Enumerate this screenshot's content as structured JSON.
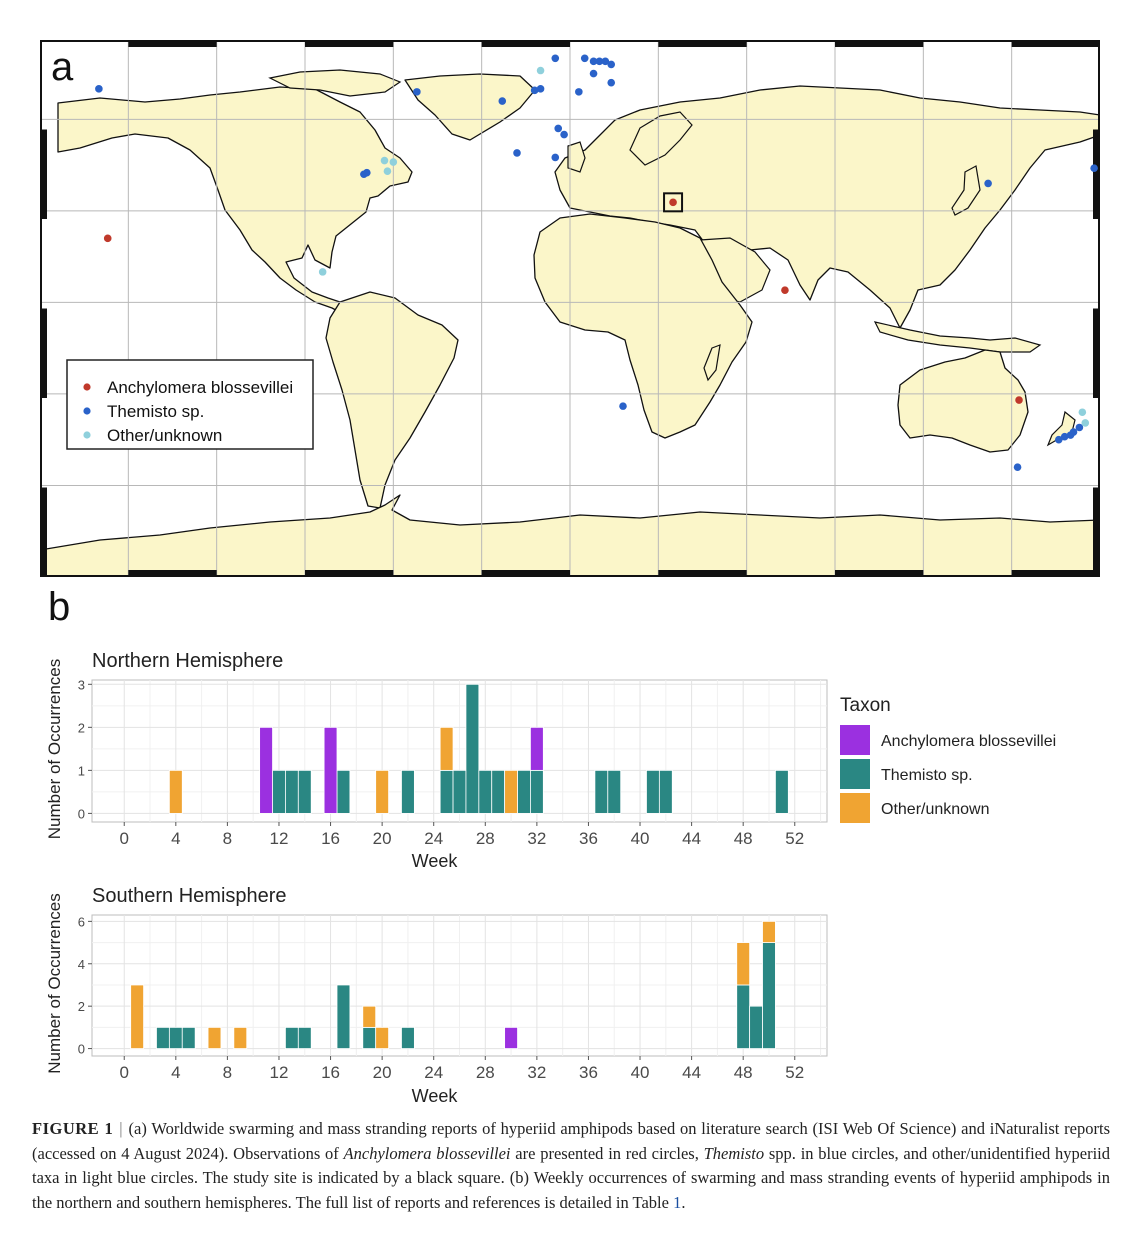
{
  "panel_a": {
    "label": "a",
    "legend": [
      {
        "label": "Anchylomera blossevillei",
        "color": "#c0392b"
      },
      {
        "label": "Themisto sp.",
        "color": "#2a62c9"
      },
      {
        "label": "Other/unknown",
        "color": "#8fd0dc"
      }
    ],
    "colors": {
      "land": "#fbf6c9",
      "ocean": "#ffffff",
      "outline": "#111111",
      "grid": "#c8c8c8"
    },
    "study_site": {
      "lon": 35.0,
      "lat": 32.8
    },
    "observations": [
      {
        "taxon": "Themisto sp.",
        "lon": -160,
        "lat": 70
      },
      {
        "taxon": "Themisto sp.",
        "lon": -52,
        "lat": 69
      },
      {
        "taxon": "Themisto sp.",
        "lon": -70,
        "lat": 42
      },
      {
        "taxon": "Themisto sp.",
        "lon": -69,
        "lat": 42.5
      },
      {
        "taxon": "Other/unknown",
        "lon": -62,
        "lat": 43
      },
      {
        "taxon": "Other/unknown",
        "lon": -60,
        "lat": 46
      },
      {
        "taxon": "Other/unknown",
        "lon": -63,
        "lat": 46.5
      },
      {
        "taxon": "Other/unknown",
        "lon": -84,
        "lat": 10
      },
      {
        "taxon": "Anchylomera blossevillei",
        "lon": -157,
        "lat": 21
      },
      {
        "taxon": "Themisto sp.",
        "lon": -23,
        "lat": 66
      },
      {
        "taxon": "Other/unknown",
        "lon": -10,
        "lat": 76
      },
      {
        "taxon": "Themisto sp.",
        "lon": -5,
        "lat": 80
      },
      {
        "taxon": "Themisto sp.",
        "lon": 5,
        "lat": 80
      },
      {
        "taxon": "Themisto sp.",
        "lon": 8,
        "lat": 79
      },
      {
        "taxon": "Themisto sp.",
        "lon": 10,
        "lat": 79
      },
      {
        "taxon": "Themisto sp.",
        "lon": 12,
        "lat": 79
      },
      {
        "taxon": "Themisto sp.",
        "lon": 14,
        "lat": 78
      },
      {
        "taxon": "Themisto sp.",
        "lon": 8,
        "lat": 75
      },
      {
        "taxon": "Themisto sp.",
        "lon": 14,
        "lat": 72
      },
      {
        "taxon": "Themisto sp.",
        "lon": -10,
        "lat": 70
      },
      {
        "taxon": "Themisto sp.",
        "lon": -12,
        "lat": 69.5
      },
      {
        "taxon": "Themisto sp.",
        "lon": 3,
        "lat": 69
      },
      {
        "taxon": "Themisto sp.",
        "lon": -4,
        "lat": 57
      },
      {
        "taxon": "Themisto sp.",
        "lon": -2,
        "lat": 55
      },
      {
        "taxon": "Themisto sp.",
        "lon": -18,
        "lat": 49
      },
      {
        "taxon": "Themisto sp.",
        "lon": -5,
        "lat": 47.5
      },
      {
        "taxon": "Anchylomera blossevillei",
        "lon": 35.0,
        "lat": 32.8
      },
      {
        "taxon": "Anchylomera blossevillei",
        "lon": 73,
        "lat": 4
      },
      {
        "taxon": "Themisto sp.",
        "lon": 18,
        "lat": -34
      },
      {
        "taxon": "Themisto sp.",
        "lon": 142,
        "lat": 39
      },
      {
        "taxon": "Themisto sp.",
        "lon": 178,
        "lat": 44
      },
      {
        "taxon": "Anchylomera blossevillei",
        "lon": 152.5,
        "lat": -32
      },
      {
        "taxon": "Themisto sp.",
        "lon": 152,
        "lat": -54
      },
      {
        "taxon": "Themisto sp.",
        "lon": 166,
        "lat": -45
      },
      {
        "taxon": "Themisto sp.",
        "lon": 168,
        "lat": -44
      },
      {
        "taxon": "Themisto sp.",
        "lon": 170,
        "lat": -43.5
      },
      {
        "taxon": "Themisto sp.",
        "lon": 171,
        "lat": -42.5
      },
      {
        "taxon": "Themisto sp.",
        "lon": 173,
        "lat": -41
      },
      {
        "taxon": "Other/unknown",
        "lon": 175,
        "lat": -39.5
      },
      {
        "taxon": "Other/unknown",
        "lon": 174,
        "lat": -36
      }
    ]
  },
  "panel_b": {
    "label": "b",
    "legend_title": "Taxon",
    "legend": [
      {
        "label": "Anchylomera blossevillei",
        "color": "#9b30e0"
      },
      {
        "label": "Themisto sp.",
        "color": "#2a8783"
      },
      {
        "label": "Other/unknown",
        "color": "#f0a432"
      }
    ]
  },
  "chart_data": [
    {
      "type": "bar",
      "stacked": true,
      "title": "Northern Hemisphere",
      "xlabel": "Week",
      "ylabel": "Number of Occurrences",
      "xlim": [
        -2.5,
        54.5
      ],
      "ylim": [
        -0.2,
        3.1
      ],
      "x_ticks": [
        0,
        4,
        8,
        12,
        16,
        20,
        24,
        28,
        32,
        36,
        40,
        44,
        48,
        52
      ],
      "y_ticks": [
        0,
        1,
        2,
        3
      ],
      "grid": true,
      "series": [
        {
          "name": "Themisto sp.",
          "color": "#2a8783",
          "points": [
            [
              12,
              1
            ],
            [
              13,
              1
            ],
            [
              14,
              1
            ],
            [
              17,
              1
            ],
            [
              22,
              1
            ],
            [
              25,
              1
            ],
            [
              26,
              1
            ],
            [
              27,
              3
            ],
            [
              28,
              1
            ],
            [
              29,
              1
            ],
            [
              31,
              1
            ],
            [
              32,
              1
            ],
            [
              37,
              1
            ],
            [
              38,
              1
            ],
            [
              41,
              1
            ],
            [
              42,
              1
            ],
            [
              51,
              1
            ]
          ]
        },
        {
          "name": "Anchylomera blossevillei",
          "color": "#9b30e0",
          "points": [
            [
              11,
              2
            ],
            [
              16,
              2
            ],
            [
              32,
              1
            ]
          ]
        },
        {
          "name": "Other/unknown",
          "color": "#f0a432",
          "points": [
            [
              4,
              1
            ],
            [
              20,
              1
            ],
            [
              25,
              1
            ],
            [
              30,
              1
            ]
          ]
        }
      ]
    },
    {
      "type": "bar",
      "stacked": true,
      "title": "Southern Hemisphere",
      "xlabel": "Week",
      "ylabel": "Number of Occurrences",
      "xlim": [
        -2.5,
        54.5
      ],
      "ylim": [
        -0.35,
        6.3
      ],
      "x_ticks": [
        0,
        4,
        8,
        12,
        16,
        20,
        24,
        28,
        32,
        36,
        40,
        44,
        48,
        52
      ],
      "y_ticks": [
        0,
        2,
        4,
        6
      ],
      "grid": true,
      "series": [
        {
          "name": "Themisto sp.",
          "color": "#2a8783",
          "points": [
            [
              3,
              1
            ],
            [
              4,
              1
            ],
            [
              5,
              1
            ],
            [
              13,
              1
            ],
            [
              14,
              1
            ],
            [
              17,
              3
            ],
            [
              19,
              1
            ],
            [
              22,
              1
            ],
            [
              48,
              3
            ],
            [
              49,
              2
            ],
            [
              50,
              5
            ]
          ]
        },
        {
          "name": "Anchylomera blossevillei",
          "color": "#9b30e0",
          "points": [
            [
              30,
              1
            ]
          ]
        },
        {
          "name": "Other/unknown",
          "color": "#f0a432",
          "points": [
            [
              1,
              3
            ],
            [
              7,
              1
            ],
            [
              9,
              1
            ],
            [
              19,
              1
            ],
            [
              20,
              1
            ],
            [
              48,
              2
            ],
            [
              50,
              1
            ]
          ]
        }
      ]
    }
  ],
  "caption": {
    "label": "FIGURE 1",
    "separator": "|",
    "part1": "(a) Worldwide swarming and mass stranding reports of hyperiid amphipods based on literature search (ISI Web Of Science) and iNaturalist reports (accessed on 4 August 2024). Observations of ",
    "species1": "Anchylomera blossevillei",
    "part2": " are presented in red circles, ",
    "species2": "Themisto",
    "part3": " spp. in blue circles, and other/unidentified hyperiid taxa in light blue circles. The study site is indicated by a black square. (b) Weekly occurrences of swarming and mass stranding events of hyperiid amphipods in the northern and southern hemispheres. The full list of reports and references is detailed in Table ",
    "table_ref": "1",
    "end": "."
  }
}
